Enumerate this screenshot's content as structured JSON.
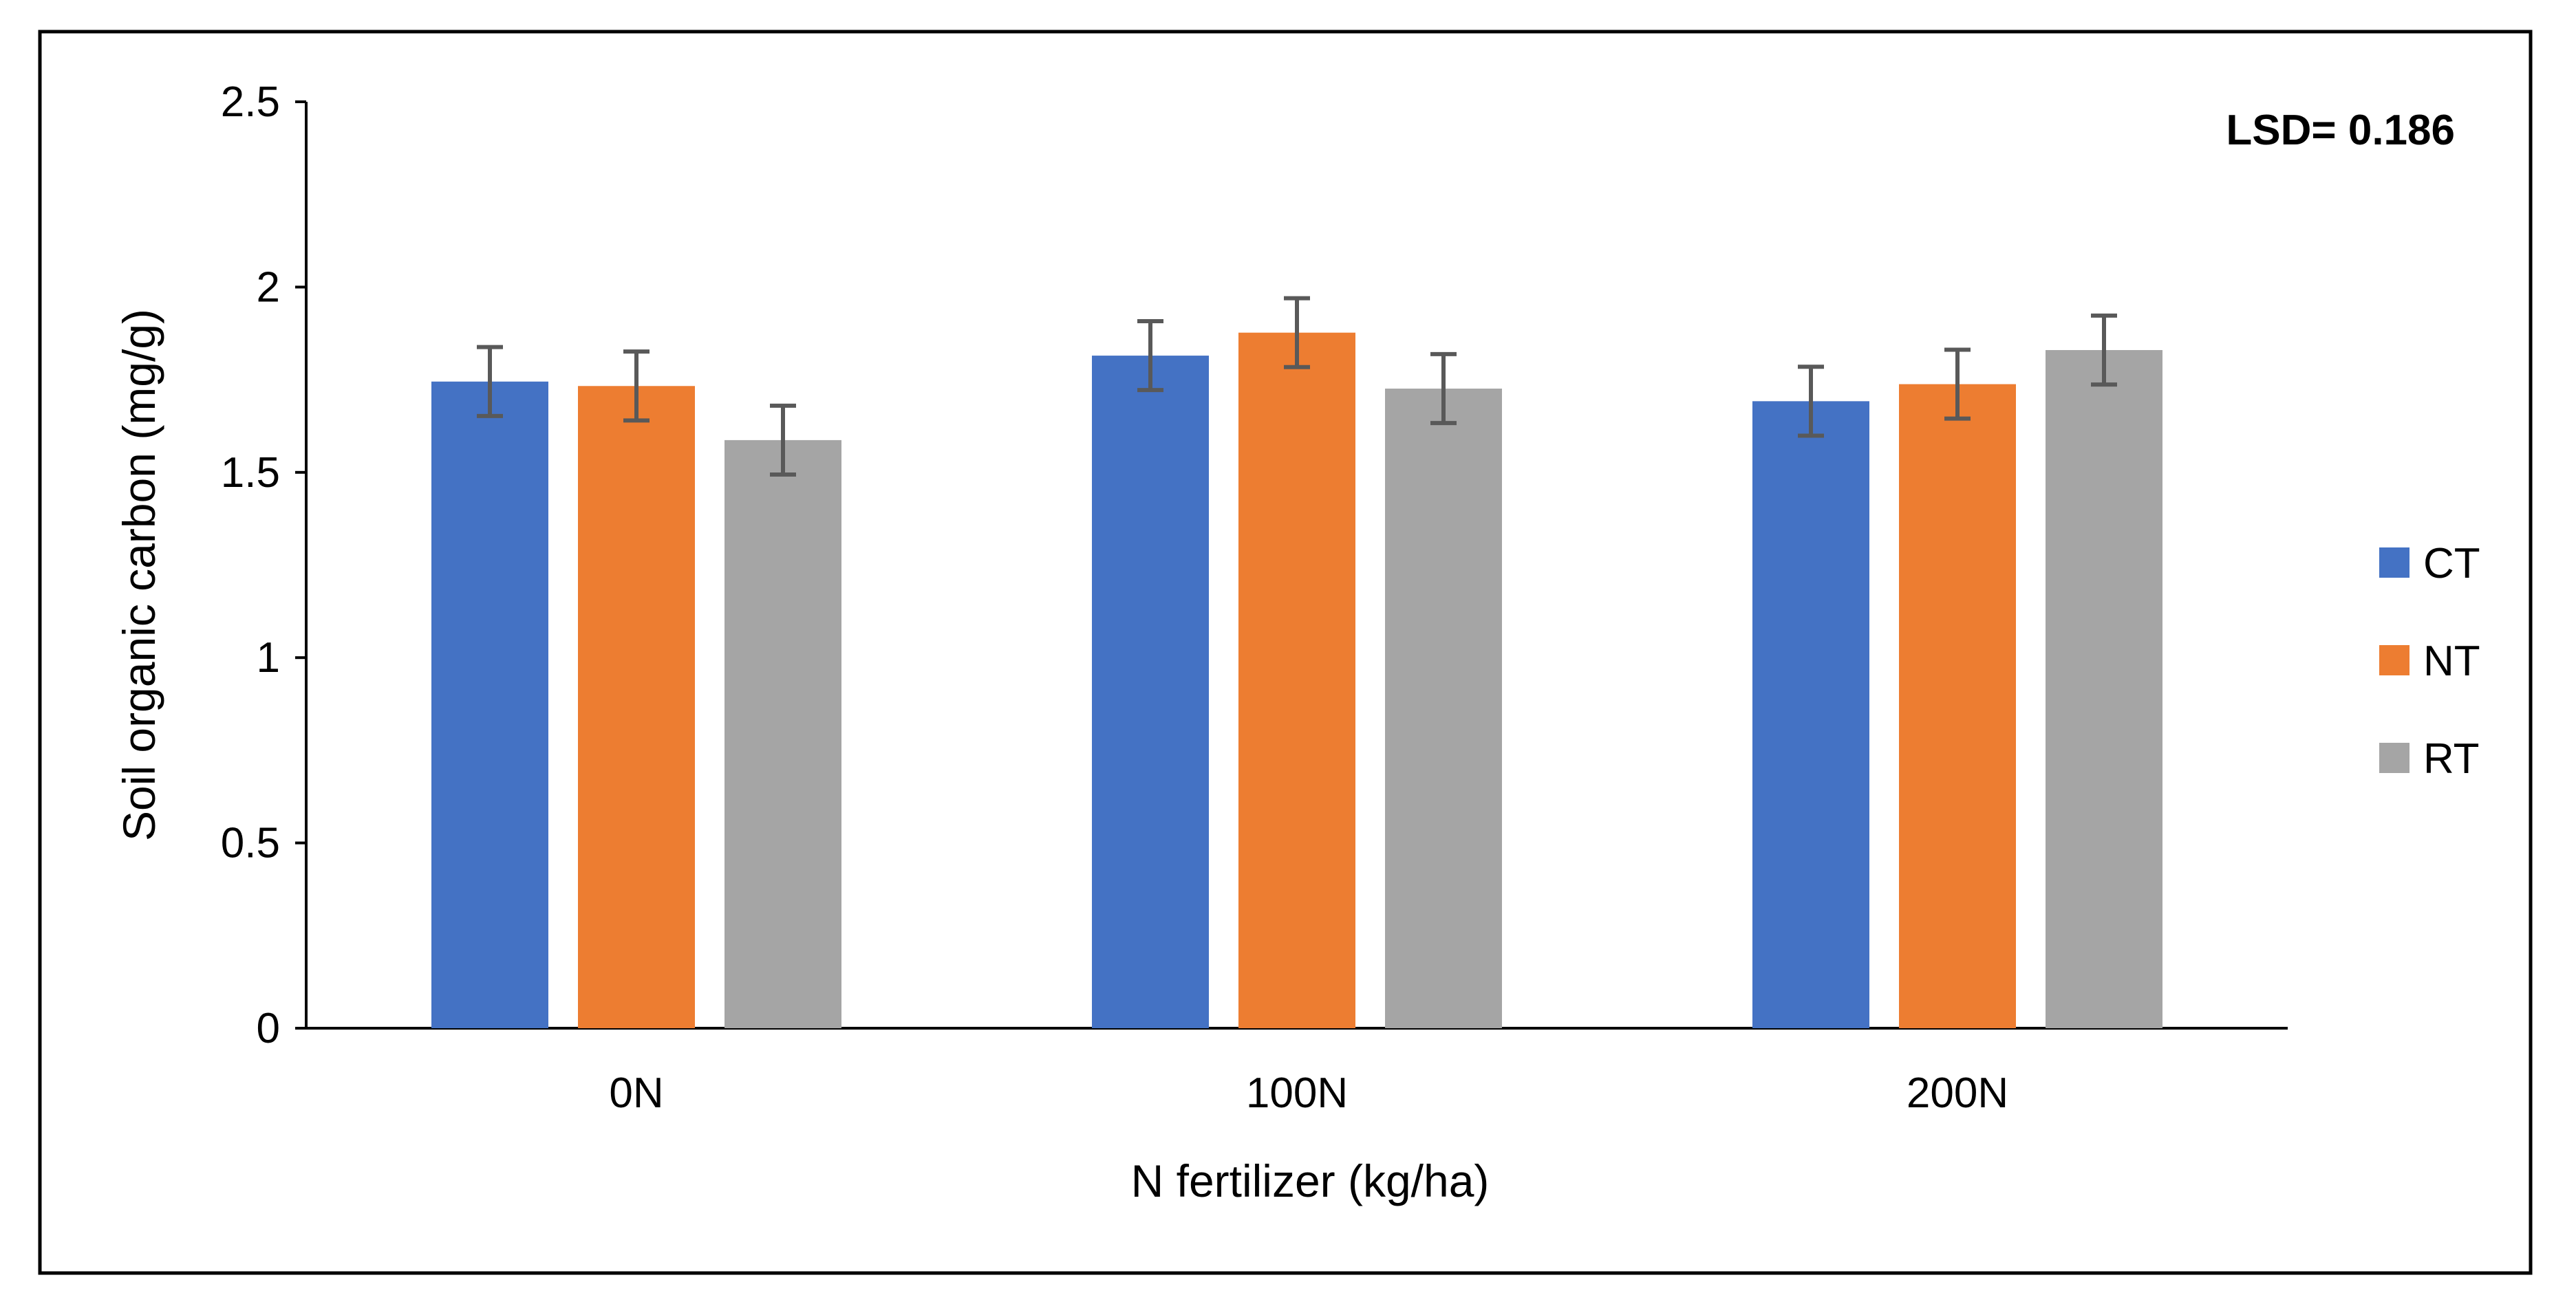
{
  "chart_data": {
    "type": "bar",
    "title": "",
    "xlabel": "N fertilizer (kg/ha)",
    "ylabel": "Soil organic carbon (mg/g)",
    "ylim": [
      0,
      2.5
    ],
    "yticks": [
      0,
      0.5,
      1,
      1.5,
      2,
      2.5
    ],
    "ytick_labels": [
      "0",
      "0.5",
      "1",
      "1.5",
      "2",
      "2.5"
    ],
    "categories": [
      "0N",
      "100N",
      "200N"
    ],
    "series": [
      {
        "name": "CT",
        "color": "#4472C4",
        "values": [
          1.745,
          1.815,
          1.692
        ],
        "errors": [
          0.093,
          0.093,
          0.093
        ]
      },
      {
        "name": "NT",
        "color": "#ED7D31",
        "values": [
          1.733,
          1.877,
          1.738
        ],
        "errors": [
          0.093,
          0.093,
          0.093
        ]
      },
      {
        "name": "RT",
        "color": "#A5A5A5",
        "values": [
          1.587,
          1.726,
          1.83
        ],
        "errors": [
          0.093,
          0.093,
          0.093
        ]
      }
    ],
    "error_bar_color": "#595959",
    "legend_position": "right",
    "annotation": "LSD= 0.186",
    "grid": false
  }
}
